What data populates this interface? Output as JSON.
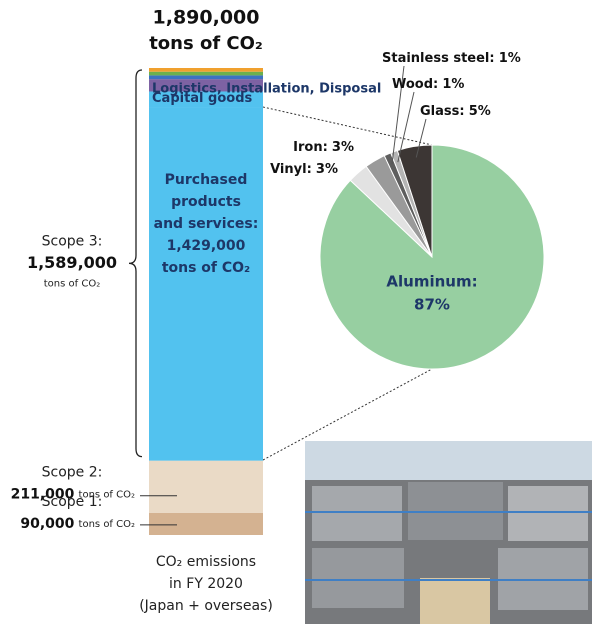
{
  "chart_data": [
    {
      "type": "stacked-bar",
      "title": "1,890,000",
      "subtitle": "tons of CO₂",
      "ylim": [
        0,
        1890000
      ],
      "segments": [
        {
          "name": "Scope 1:",
          "value": 90000,
          "value_label": "90,000",
          "unit": "tons of CO₂",
          "color": "#d4b291"
        },
        {
          "name": "Scope 2:",
          "value": 211000,
          "value_label": "211,000",
          "unit": "tons of CO₂",
          "color": "#eadac6"
        },
        {
          "name": [
            "Purchased",
            "products",
            "and services:"
          ],
          "value": 1429000,
          "value_label": "1,429,000",
          "unit": "tons of CO₂",
          "color": "#52c2ef"
        },
        {
          "name": "Capital goods",
          "value": 65000,
          "color": "#52c2ef"
        },
        {
          "name": "Logistics, Installation, Disposal",
          "value": 50000,
          "color": "#7d62a3"
        },
        {
          "name": null,
          "value": 15000,
          "color": "#3c72c2"
        },
        {
          "name": null,
          "value": 15000,
          "color": "#6cb04e"
        },
        {
          "name": null,
          "value": 15000,
          "color": "#f0a02e"
        }
      ],
      "groups": [
        {
          "name": "Scope 3:",
          "first": 2,
          "value": 1589000,
          "value_label": "1,589,000",
          "unit": "tons of CO₂"
        }
      ],
      "caption": [
        "CO₂ emissions",
        "in FY 2020",
        "(Japan + overseas)"
      ]
    },
    {
      "type": "pie",
      "categories": [
        "Aluminum:",
        "Vinyl:",
        "Iron:",
        "Stainless steel:",
        "Wood:",
        "Glass:"
      ],
      "values": [
        87,
        3,
        3,
        1,
        1,
        5
      ],
      "value_labels": [
        "87%",
        "3%",
        "3%",
        "1%",
        "1%",
        "5%"
      ],
      "colors": [
        "#97cfa1",
        "#e2e2e2",
        "#9a9a9a",
        "#5e5e5e",
        "#b4b4b4",
        "#3c3634"
      ]
    }
  ]
}
